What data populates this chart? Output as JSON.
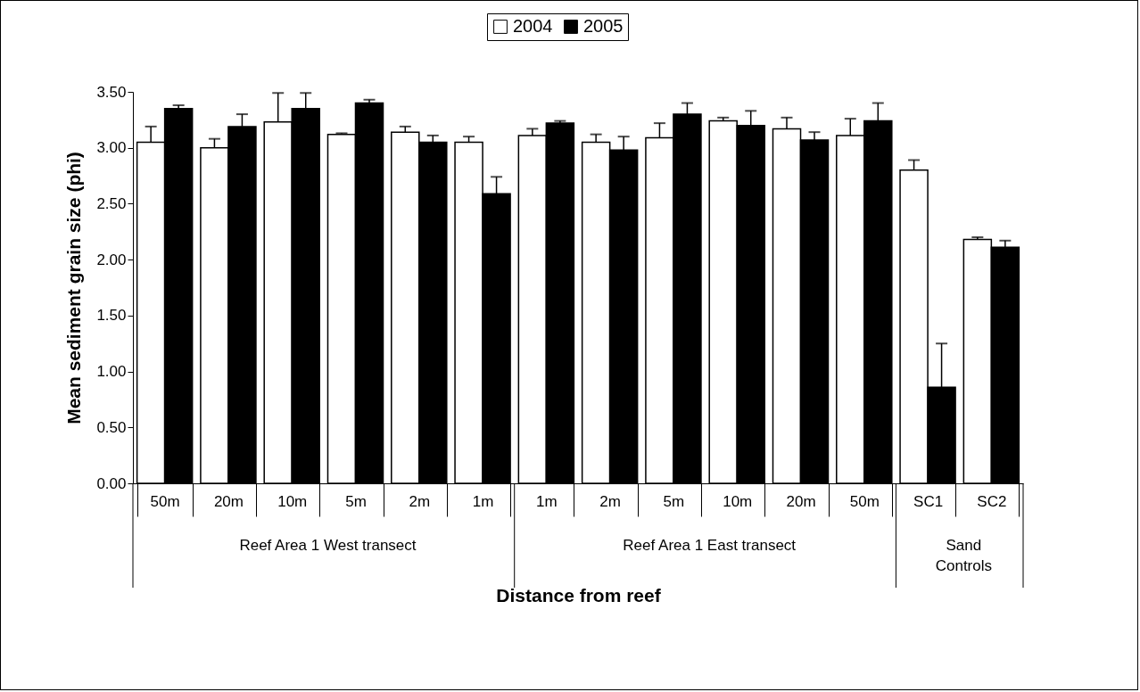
{
  "chart_data": {
    "type": "bar",
    "xlabel": "Distance from reef",
    "ylabel": "Mean sediment grain size (phi)",
    "categories": [
      "50m",
      "20m",
      "10m",
      "5m",
      "2m",
      "1m",
      "1m",
      "2m",
      "5m",
      "10m",
      "20m",
      "50m",
      "SC1",
      "SC2"
    ],
    "series": [
      {
        "name": "2004",
        "color": "#ffffff",
        "values": [
          3.05,
          3.0,
          3.23,
          3.12,
          3.14,
          3.05,
          3.11,
          3.05,
          3.09,
          3.24,
          3.17,
          3.11,
          2.8,
          2.18
        ],
        "errors": [
          [
            3.05,
            3.19
          ],
          [
            3.0,
            3.08
          ],
          [
            3.23,
            3.49
          ],
          [
            3.12,
            3.13
          ],
          [
            3.14,
            3.19
          ],
          [
            3.05,
            3.1
          ],
          [
            3.11,
            3.17
          ],
          [
            3.05,
            3.12
          ],
          [
            3.09,
            3.22
          ],
          [
            3.24,
            3.27
          ],
          [
            3.17,
            3.27
          ],
          [
            3.11,
            3.26
          ],
          [
            2.8,
            2.89
          ],
          [
            2.18,
            2.2
          ]
        ]
      },
      {
        "name": "2005",
        "color": "#000000",
        "values": [
          3.35,
          3.19,
          3.35,
          3.4,
          3.05,
          2.59,
          3.22,
          2.98,
          3.3,
          3.2,
          3.07,
          3.24,
          0.86,
          2.11
        ],
        "errors": [
          [
            3.35,
            3.38
          ],
          [
            3.19,
            3.3
          ],
          [
            3.35,
            3.49
          ],
          [
            3.4,
            3.43
          ],
          [
            3.05,
            3.11
          ],
          [
            2.59,
            2.74
          ],
          [
            3.22,
            3.24
          ],
          [
            2.98,
            3.1
          ],
          [
            3.3,
            3.4
          ],
          [
            3.2,
            3.33
          ],
          [
            3.07,
            3.14
          ],
          [
            3.24,
            3.4
          ],
          [
            0.86,
            1.25
          ],
          [
            2.11,
            2.17
          ]
        ]
      }
    ],
    "ylim": [
      0,
      3.5
    ],
    "yticks": [
      {
        "value": 0,
        "label": "0.00"
      },
      {
        "value": 0.5,
        "label": "0.50"
      },
      {
        "value": 1,
        "label": "1.00"
      },
      {
        "value": 1.5,
        "label": "1.50"
      },
      {
        "value": 2,
        "label": "2.00"
      },
      {
        "value": 2.5,
        "label": "2.50"
      },
      {
        "value": 3,
        "label": "3.00"
      },
      {
        "value": 3.5,
        "label": "3.50"
      }
    ],
    "grid": false,
    "legend": "top",
    "annotations": [
      "Reef Area 1  West transect",
      "Reef Area 1  East transect",
      "Sand Controls"
    ]
  }
}
